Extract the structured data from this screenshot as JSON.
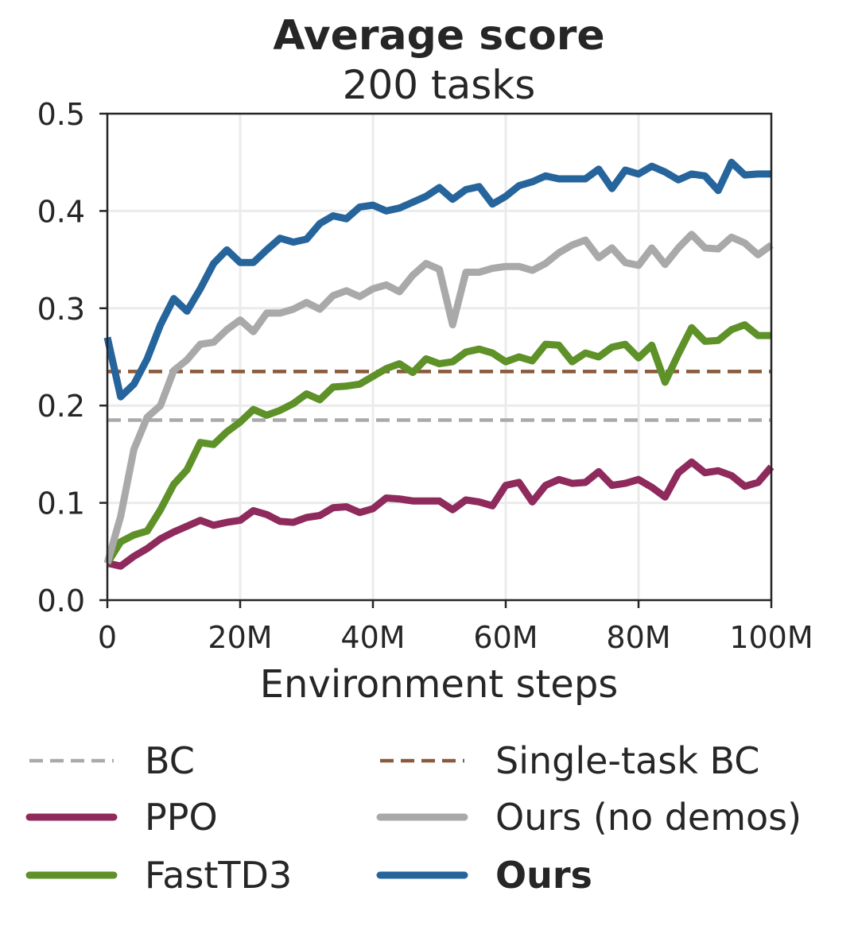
{
  "chart_data": {
    "type": "line",
    "title": "Average score",
    "subtitle": "200 tasks",
    "xlabel": "Environment steps",
    "ylabel": "",
    "xlim": [
      0,
      100
    ],
    "ylim": [
      0,
      0.5
    ],
    "x_ticks": [
      {
        "value": 0,
        "label": "0"
      },
      {
        "value": 20,
        "label": "20M"
      },
      {
        "value": 40,
        "label": "40M"
      },
      {
        "value": 60,
        "label": "60M"
      },
      {
        "value": 80,
        "label": "80M"
      },
      {
        "value": 100,
        "label": "100M"
      }
    ],
    "y_ticks": [
      {
        "value": 0,
        "label": "0.0"
      },
      {
        "value": 0.1,
        "label": "0.1"
      },
      {
        "value": 0.2,
        "label": "0.2"
      },
      {
        "value": 0.3,
        "label": "0.3"
      },
      {
        "value": 0.4,
        "label": "0.4"
      },
      {
        "value": 0.5,
        "label": "0.5"
      }
    ],
    "grid": true,
    "legend_position": "bottom",
    "x": [
      0,
      2,
      4,
      6,
      8,
      10,
      12,
      14,
      16,
      18,
      20,
      22,
      24,
      26,
      28,
      30,
      32,
      34,
      36,
      38,
      40,
      42,
      44,
      46,
      48,
      50,
      52,
      54,
      56,
      58,
      60,
      62,
      64,
      66,
      68,
      70,
      72,
      74,
      76,
      78,
      80,
      82,
      84,
      86,
      88,
      90,
      92,
      94,
      96,
      98,
      100
    ],
    "series": [
      {
        "name": "BC",
        "color": "#aaaaaa",
        "style": "dashed",
        "constant": 0.185
      },
      {
        "name": "Single-task BC",
        "color": "#8b5a3c",
        "style": "dashed",
        "constant": 0.235
      },
      {
        "name": "PPO",
        "color": "#8e2a5c",
        "style": "solid",
        "values": [
          0.038,
          0.035,
          0.045,
          0.053,
          0.063,
          0.07,
          0.076,
          0.082,
          0.077,
          0.08,
          0.082,
          0.092,
          0.088,
          0.081,
          0.08,
          0.085,
          0.087,
          0.095,
          0.096,
          0.09,
          0.094,
          0.105,
          0.104,
          0.102,
          0.102,
          0.102,
          0.093,
          0.103,
          0.101,
          0.097,
          0.118,
          0.121,
          0.101,
          0.118,
          0.124,
          0.12,
          0.121,
          0.132,
          0.118,
          0.12,
          0.124,
          0.116,
          0.106,
          0.131,
          0.142,
          0.131,
          0.133,
          0.128,
          0.117,
          0.121,
          0.137
        ]
      },
      {
        "name": "FastTD3",
        "color": "#5e9128",
        "style": "solid",
        "values": [
          0.038,
          0.06,
          0.067,
          0.071,
          0.093,
          0.119,
          0.134,
          0.162,
          0.16,
          0.173,
          0.183,
          0.196,
          0.19,
          0.195,
          0.202,
          0.212,
          0.206,
          0.219,
          0.22,
          0.222,
          0.23,
          0.238,
          0.243,
          0.234,
          0.248,
          0.243,
          0.245,
          0.255,
          0.258,
          0.254,
          0.245,
          0.25,
          0.246,
          0.263,
          0.262,
          0.245,
          0.254,
          0.25,
          0.26,
          0.263,
          0.249,
          0.262,
          0.224,
          0.253,
          0.28,
          0.266,
          0.267,
          0.278,
          0.283,
          0.272,
          0.272
        ]
      },
      {
        "name": "Ours (no demos)",
        "color": "#a9a9a9",
        "style": "solid",
        "values": [
          0.038,
          0.086,
          0.155,
          0.188,
          0.2,
          0.236,
          0.247,
          0.263,
          0.265,
          0.278,
          0.288,
          0.276,
          0.295,
          0.295,
          0.299,
          0.306,
          0.299,
          0.313,
          0.318,
          0.312,
          0.32,
          0.324,
          0.317,
          0.334,
          0.346,
          0.34,
          0.283,
          0.337,
          0.337,
          0.341,
          0.343,
          0.343,
          0.339,
          0.346,
          0.357,
          0.365,
          0.37,
          0.352,
          0.362,
          0.347,
          0.344,
          0.362,
          0.345,
          0.362,
          0.376,
          0.362,
          0.361,
          0.373,
          0.367,
          0.355,
          0.365
        ]
      },
      {
        "name": "Ours",
        "color": "#26649c",
        "style": "solid",
        "bold": true,
        "values": [
          0.27,
          0.209,
          0.222,
          0.248,
          0.283,
          0.31,
          0.297,
          0.32,
          0.346,
          0.36,
          0.347,
          0.347,
          0.36,
          0.372,
          0.368,
          0.371,
          0.387,
          0.395,
          0.392,
          0.404,
          0.406,
          0.4,
          0.403,
          0.409,
          0.415,
          0.424,
          0.412,
          0.422,
          0.425,
          0.407,
          0.415,
          0.426,
          0.43,
          0.436,
          0.433,
          0.433,
          0.433,
          0.443,
          0.423,
          0.442,
          0.438,
          0.446,
          0.44,
          0.432,
          0.438,
          0.436,
          0.421,
          0.45,
          0.437,
          0.438,
          0.438
        ]
      }
    ]
  },
  "legend": {
    "items": [
      {
        "label": "BC",
        "color": "#aaaaaa",
        "style": "dashed",
        "bold": false
      },
      {
        "label": "Single-task BC",
        "color": "#8b5a3c",
        "style": "dashed",
        "bold": false
      },
      {
        "label": "PPO",
        "color": "#8e2a5c",
        "style": "solid",
        "bold": false
      },
      {
        "label": "Ours (no demos)",
        "color": "#a9a9a9",
        "style": "solid",
        "bold": false
      },
      {
        "label": "FastTD3",
        "color": "#5e9128",
        "style": "solid",
        "bold": false
      },
      {
        "label": "Ours",
        "color": "#26649c",
        "style": "solid",
        "bold": true
      }
    ]
  }
}
